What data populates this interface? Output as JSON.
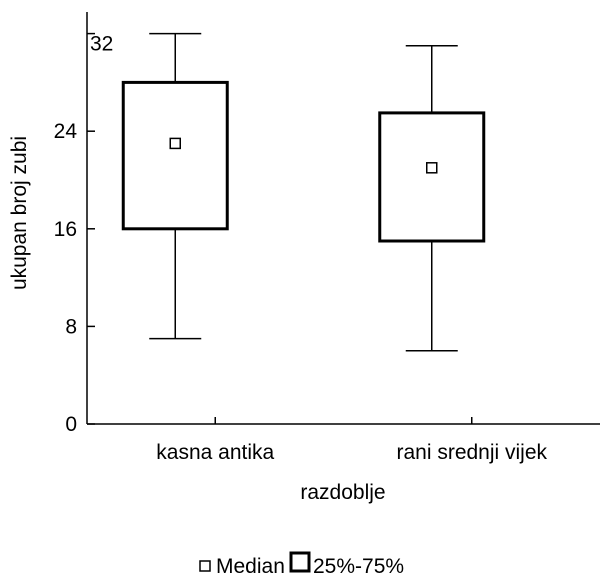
{
  "chart_data": {
    "type": "boxplot",
    "xlabel": "razdoblje",
    "ylabel": "ukupan broj zubi",
    "ylim": [
      0,
      34
    ],
    "yticks": [
      0,
      8,
      16,
      24,
      32
    ],
    "grid": false,
    "legend_position": "bottom",
    "legend": {
      "median_label": "Median",
      "box_label": "25%-75%"
    },
    "categories": [
      "kasna antika",
      "rani srednji vijek"
    ],
    "boxes": [
      {
        "category": "kasna antika",
        "whisker_low": 7,
        "q1": 16,
        "median": 23,
        "q3": 28,
        "whisker_high": 32
      },
      {
        "category": "rani srednji vijek",
        "whisker_low": 6,
        "q1": 15,
        "median": 21,
        "q3": 25.5,
        "whisker_high": 31
      }
    ]
  }
}
